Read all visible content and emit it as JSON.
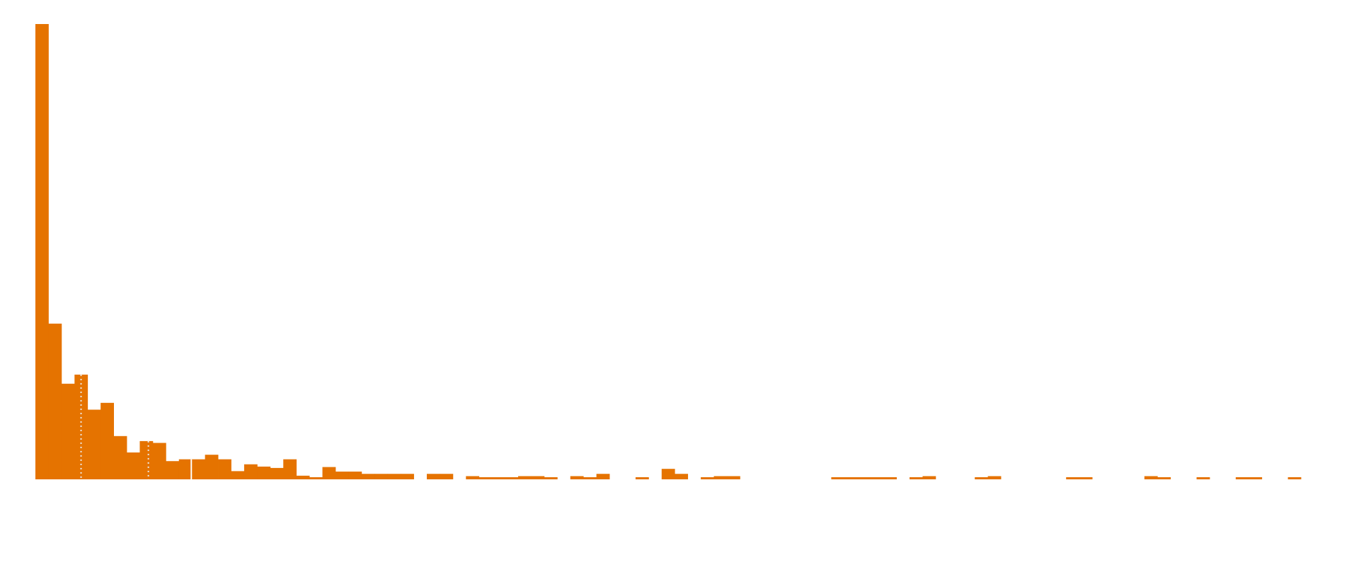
{
  "chart_data": {
    "type": "bar",
    "subtype": "histogram",
    "title": "",
    "xlabel": "",
    "ylabel": "",
    "axes_visible": false,
    "grid": false,
    "legend": "none",
    "bar_color": "#e57300",
    "bin_count": 97,
    "values": [
      1000,
      342,
      210,
      230,
      153,
      168,
      95,
      59,
      84,
      80,
      40,
      44,
      44,
      54,
      44,
      18,
      33,
      28,
      25,
      44,
      8,
      3,
      27,
      17,
      17,
      12,
      12,
      12,
      12,
      0,
      12,
      12,
      0,
      7,
      3,
      3,
      3,
      7,
      7,
      3,
      0,
      7,
      3,
      12,
      0,
      0,
      3,
      0,
      23,
      12,
      0,
      3,
      7,
      7,
      0,
      0,
      0,
      0,
      0,
      0,
      0,
      3,
      3,
      3,
      3,
      3,
      0,
      3,
      7,
      0,
      0,
      0,
      3,
      7,
      0,
      0,
      0,
      0,
      0,
      3,
      3,
      0,
      0,
      0,
      0,
      7,
      3,
      0,
      0,
      3,
      0,
      0,
      3,
      3,
      0,
      0,
      3
    ],
    "reference_lines": [
      {
        "style": "dotted",
        "color": "#ebebeb",
        "x_bin": 3.5
      },
      {
        "style": "dotted",
        "color": "#ebebeb",
        "x_bin": 8.66
      },
      {
        "style": "solid",
        "color": "#ffffff",
        "x_bin": 11.95
      }
    ]
  }
}
